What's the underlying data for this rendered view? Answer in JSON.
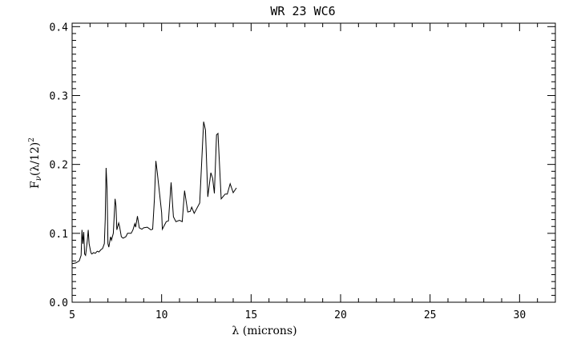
{
  "chart_data": {
    "type": "line",
    "title": "WR 23 WC6",
    "xlabel": "λ (microns)",
    "ylabel": {
      "main": "F",
      "sub": "ν",
      "paren": "(λ/12)",
      "sup": "2"
    },
    "xlim": [
      5,
      32
    ],
    "ylim": [
      0,
      0.405
    ],
    "xticks": [
      5,
      10,
      15,
      20,
      25,
      30
    ],
    "xtick_labels": [
      "5",
      "10",
      "15",
      "20",
      "25",
      "30"
    ],
    "x_minor_step": 1,
    "yticks": [
      0,
      0.1,
      0.2,
      0.3,
      0.4
    ],
    "ytick_labels": [
      "0.0",
      "0.1",
      "0.2",
      "0.3",
      "0.4"
    ],
    "y_minor_step": 0.01,
    "grid": false,
    "line_color": "#000000",
    "series": [
      {
        "x": [
          5.0,
          5.2,
          5.4,
          5.5,
          5.55,
          5.6,
          5.65,
          5.7,
          5.75,
          5.85,
          5.9,
          5.95,
          6.05,
          6.1,
          6.2,
          6.3,
          6.4,
          6.5,
          6.6,
          6.7,
          6.8,
          6.85,
          6.9,
          6.95,
          7.0,
          7.05,
          7.15,
          7.2,
          7.3,
          7.4,
          7.45,
          7.5,
          7.6,
          7.65,
          7.75,
          7.85,
          8.0,
          8.1,
          8.3,
          8.4,
          8.5,
          8.55,
          8.65,
          8.75,
          8.9,
          9.0,
          9.2,
          9.3,
          9.4,
          9.5,
          9.6,
          9.68,
          9.75,
          10.0,
          10.04,
          10.26,
          10.38,
          10.53,
          10.66,
          10.8,
          11.0,
          11.15,
          11.28,
          11.46,
          11.6,
          11.68,
          11.82,
          12.13,
          12.35,
          12.45,
          12.58,
          12.75,
          12.85,
          12.95,
          13.07,
          13.15,
          13.33,
          13.55,
          13.67,
          13.83,
          14.0,
          14.18
        ],
        "y": [
          0.056,
          0.057,
          0.06,
          0.068,
          0.105,
          0.085,
          0.102,
          0.07,
          0.068,
          0.09,
          0.105,
          0.085,
          0.072,
          0.07,
          0.072,
          0.071,
          0.074,
          0.073,
          0.076,
          0.078,
          0.085,
          0.12,
          0.195,
          0.165,
          0.085,
          0.08,
          0.095,
          0.09,
          0.1,
          0.15,
          0.14,
          0.105,
          0.115,
          0.11,
          0.095,
          0.093,
          0.095,
          0.1,
          0.1,
          0.105,
          0.114,
          0.109,
          0.125,
          0.108,
          0.106,
          0.108,
          0.109,
          0.107,
          0.105,
          0.106,
          0.15,
          0.205,
          0.19,
          0.13,
          0.106,
          0.117,
          0.118,
          0.174,
          0.124,
          0.117,
          0.119,
          0.117,
          0.162,
          0.131,
          0.132,
          0.138,
          0.129,
          0.144,
          0.262,
          0.25,
          0.153,
          0.188,
          0.18,
          0.158,
          0.243,
          0.245,
          0.15,
          0.157,
          0.157,
          0.172,
          0.159,
          0.166
        ]
      }
    ]
  }
}
